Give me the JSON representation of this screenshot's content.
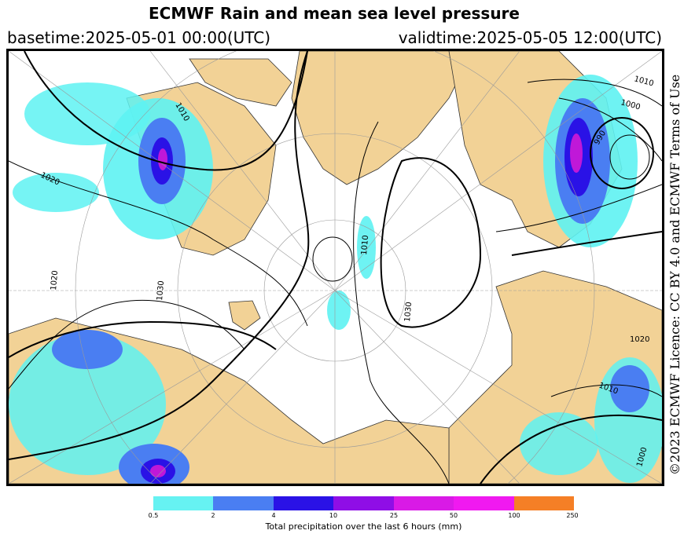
{
  "header": {
    "title": "ECMWF Rain and mean sea level pressure",
    "basetime": "basetime:2025-05-01 00:00(UTC)",
    "validtime": "validtime:2025-05-05 12:00(UTC)"
  },
  "credit": "©2023 ECMWF Licence: CC BY 4.0 and ECMWF Terms of Use",
  "isobar_labels": [
    "1010",
    "1000",
    "990",
    "1020",
    "1010",
    "1020",
    "1010",
    "1000",
    "1010",
    "1030",
    "1030",
    "1020"
  ],
  "colors": {
    "land": "#f2d296",
    "sea": "#ffffff",
    "precip_light": "#5ef2f2",
    "precip_mid": "#4a7ef2",
    "precip_heavy": "#2a12e6",
    "precip_extreme": "#c018d8"
  },
  "legend": {
    "caption": "Total precipitation over the last 6 hours (mm)",
    "ticks": [
      "0.5",
      "2",
      "4",
      "10",
      "25",
      "50",
      "100",
      "250"
    ],
    "colors": [
      "#66f2f2",
      "#4a7ef2",
      "#2a12e6",
      "#8f0ee6",
      "#d91ae6",
      "#f019f0",
      "#f57f26",
      "#f01a33"
    ]
  }
}
